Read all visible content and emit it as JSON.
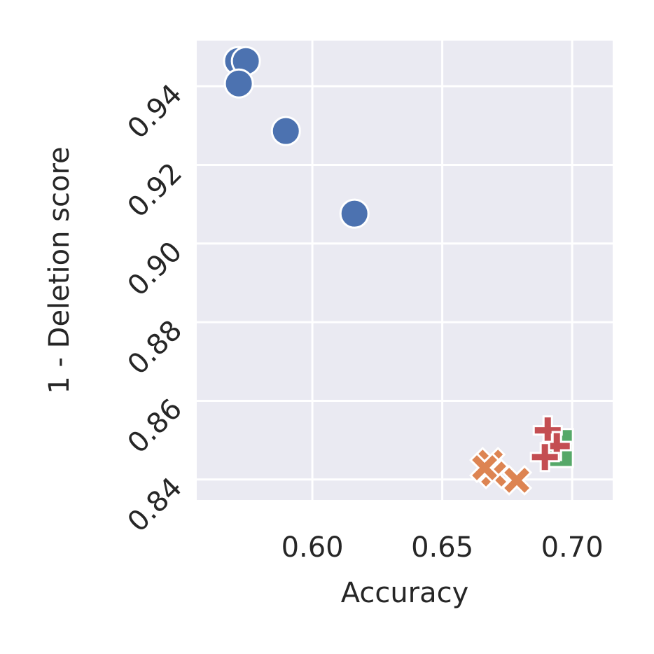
{
  "chart_data": {
    "type": "scatter",
    "xlabel": "Accuracy",
    "ylabel": "1 - Deletion score",
    "xlim": [
      0.5555,
      0.7156
    ],
    "ylim": [
      0.8348,
      0.9516
    ],
    "xticks": [
      {
        "value": 0.6,
        "label": "0.60"
      },
      {
        "value": 0.65,
        "label": "0.65"
      },
      {
        "value": 0.7,
        "label": "0.70"
      }
    ],
    "yticks": [
      {
        "value": 0.84,
        "label": "0.84"
      },
      {
        "value": 0.86,
        "label": "0.86"
      },
      {
        "value": 0.88,
        "label": "0.88"
      },
      {
        "value": 0.9,
        "label": "0.90"
      },
      {
        "value": 0.92,
        "label": "0.92"
      },
      {
        "value": 0.94,
        "label": "0.94"
      }
    ],
    "grid": true,
    "series": [
      {
        "color": "#4c72b0",
        "marker": "circle",
        "x": [
          0.5714,
          0.5744,
          0.5717,
          0.5898,
          0.6162
        ],
        "values": [
          0.9464,
          0.9464,
          0.9407,
          0.9286,
          0.9076
        ]
      },
      {
        "color": "#dd8452",
        "marker": "x",
        "x": [
          0.6685,
          0.6698,
          0.6787,
          0.6663
        ],
        "values": [
          0.8444,
          0.8414,
          0.8398,
          0.843
        ]
      },
      {
        "color": "#55a868",
        "marker": "square",
        "x": [
          0.6957,
          0.6957
        ],
        "values": [
          0.8498,
          0.8462
        ]
      },
      {
        "color": "#c44e52",
        "marker": "plus",
        "x": [
          0.6906,
          0.6941,
          0.6895
        ],
        "values": [
          0.8525,
          0.8485,
          0.8457
        ]
      }
    ]
  }
}
